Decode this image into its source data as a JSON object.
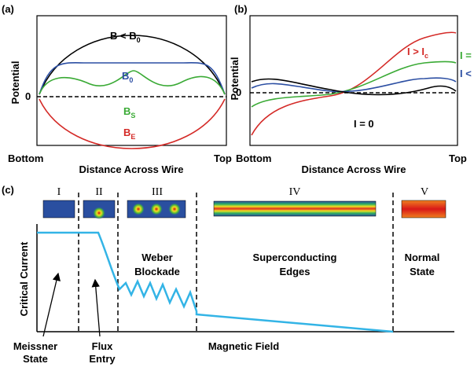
{
  "panel_a": {
    "label": "(a)",
    "y_axis": "Potential",
    "zero": "0",
    "curves": [
      {
        "main": "B < B",
        "sub": "0"
      },
      {
        "main": "B",
        "sub": "0"
      },
      {
        "main": "B",
        "sub": "S"
      },
      {
        "main": "B",
        "sub": "E"
      }
    ],
    "x_left": "Bottom",
    "x_axis": "Distance Across Wire",
    "x_right": "Top"
  },
  "panel_b": {
    "label": "(b)",
    "y_axis": "Potential",
    "zero": "0",
    "curves": [
      {
        "main": "I > I",
        "sub": "c"
      },
      {
        "main": "I ="
      },
      {
        "main": "I <"
      },
      {
        "main": "I = 0"
      }
    ],
    "x_left": "Bottom",
    "x_axis": "Distance Across Wire",
    "x_right": "Top"
  },
  "panel_c": {
    "label": "(c)",
    "regions": [
      "I",
      "II",
      "III",
      "IV",
      "V"
    ],
    "y_axis": "Critical Current",
    "region_labels": [
      [
        "Weber",
        "Blockade"
      ],
      [
        "Superconducting",
        "Edges"
      ],
      [
        "Normal",
        "State"
      ]
    ],
    "arrow_labels": [
      [
        "Meissner",
        "State"
      ],
      [
        "Flux",
        "Entry"
      ]
    ],
    "x_axis": "Magnetic Field"
  }
}
